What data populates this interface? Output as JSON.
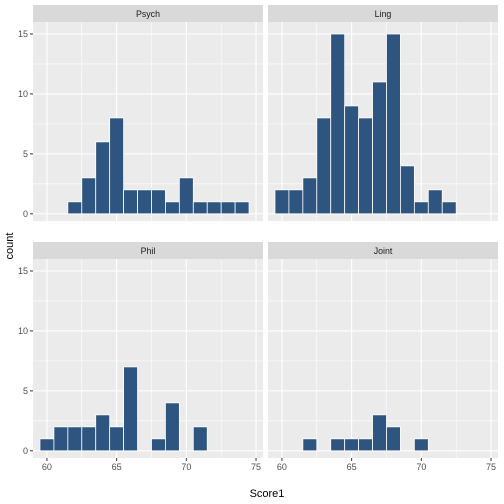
{
  "chart_data": {
    "type": "bar",
    "xlabel": "Score1",
    "ylabel": "count",
    "xlim": [
      59,
      75.5
    ],
    "ylim": [
      0,
      16
    ],
    "x_ticks": [
      60,
      65,
      70,
      75
    ],
    "y_ticks": [
      0,
      5,
      10,
      15
    ],
    "bar_color": "#2e5480",
    "bin_width": 1,
    "grid": true,
    "facets": [
      {
        "label": "Psych",
        "bins": [
          {
            "x": 62,
            "count": 1
          },
          {
            "x": 63,
            "count": 3
          },
          {
            "x": 64,
            "count": 6
          },
          {
            "x": 65,
            "count": 8
          },
          {
            "x": 66,
            "count": 2
          },
          {
            "x": 67,
            "count": 2
          },
          {
            "x": 68,
            "count": 2
          },
          {
            "x": 69,
            "count": 1
          },
          {
            "x": 70,
            "count": 3
          },
          {
            "x": 71,
            "count": 1
          },
          {
            "x": 72,
            "count": 1
          },
          {
            "x": 73,
            "count": 1
          },
          {
            "x": 74,
            "count": 1
          }
        ]
      },
      {
        "label": "Ling",
        "bins": [
          {
            "x": 60,
            "count": 2
          },
          {
            "x": 61,
            "count": 2
          },
          {
            "x": 62,
            "count": 3
          },
          {
            "x": 63,
            "count": 8
          },
          {
            "x": 64,
            "count": 15
          },
          {
            "x": 65,
            "count": 9
          },
          {
            "x": 66,
            "count": 8
          },
          {
            "x": 67,
            "count": 11
          },
          {
            "x": 68,
            "count": 15
          },
          {
            "x": 69,
            "count": 4
          },
          {
            "x": 70,
            "count": 1
          },
          {
            "x": 71,
            "count": 2
          },
          {
            "x": 72,
            "count": 1
          }
        ]
      },
      {
        "label": "Phil",
        "bins": [
          {
            "x": 60,
            "count": 1
          },
          {
            "x": 61,
            "count": 2
          },
          {
            "x": 62,
            "count": 2
          },
          {
            "x": 63,
            "count": 2
          },
          {
            "x": 64,
            "count": 3
          },
          {
            "x": 65,
            "count": 2
          },
          {
            "x": 66,
            "count": 7
          },
          {
            "x": 68,
            "count": 1
          },
          {
            "x": 69,
            "count": 4
          },
          {
            "x": 71,
            "count": 2
          }
        ]
      },
      {
        "label": "Joint",
        "bins": [
          {
            "x": 62,
            "count": 1
          },
          {
            "x": 64,
            "count": 1
          },
          {
            "x": 65,
            "count": 1
          },
          {
            "x": 66,
            "count": 1
          },
          {
            "x": 67,
            "count": 3
          },
          {
            "x": 68,
            "count": 2
          },
          {
            "x": 70,
            "count": 1
          }
        ]
      }
    ]
  }
}
